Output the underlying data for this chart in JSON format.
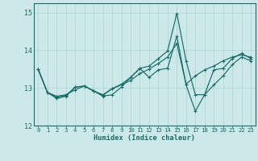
{
  "xlabel": "Humidex (Indice chaleur)",
  "background_color": "#cce8e8",
  "grid_color": "#aad4d4",
  "line_color": "#1a6b6b",
  "xlim": [
    -0.5,
    23.5
  ],
  "ylim": [
    12,
    15.25
  ],
  "yticks": [
    12,
    13,
    14,
    15
  ],
  "xticks": [
    0,
    1,
    2,
    3,
    4,
    5,
    6,
    7,
    8,
    9,
    10,
    11,
    12,
    13,
    14,
    15,
    16,
    17,
    18,
    19,
    20,
    21,
    22,
    23
  ],
  "series": [
    [
      13.5,
      12.88,
      12.78,
      12.82,
      12.95,
      13.05,
      12.92,
      12.82,
      12.98,
      13.08,
      13.2,
      13.38,
      13.5,
      13.65,
      13.82,
      14.18,
      13.1,
      13.32,
      13.48,
      13.58,
      13.72,
      13.82,
      13.88,
      13.82
    ],
    [
      13.5,
      12.88,
      12.75,
      12.8,
      13.02,
      13.05,
      12.92,
      12.8,
      12.98,
      13.1,
      13.28,
      13.52,
      13.58,
      13.78,
      13.98,
      14.98,
      13.72,
      12.82,
      12.82,
      13.48,
      13.52,
      13.78,
      13.92,
      13.78
    ],
    [
      13.5,
      12.88,
      12.72,
      12.78,
      13.02,
      13.05,
      12.92,
      12.78,
      12.82,
      13.02,
      13.28,
      13.52,
      13.28,
      13.48,
      13.52,
      14.38,
      13.08,
      12.38,
      12.82,
      13.08,
      13.32,
      13.62,
      13.82,
      13.72
    ]
  ]
}
